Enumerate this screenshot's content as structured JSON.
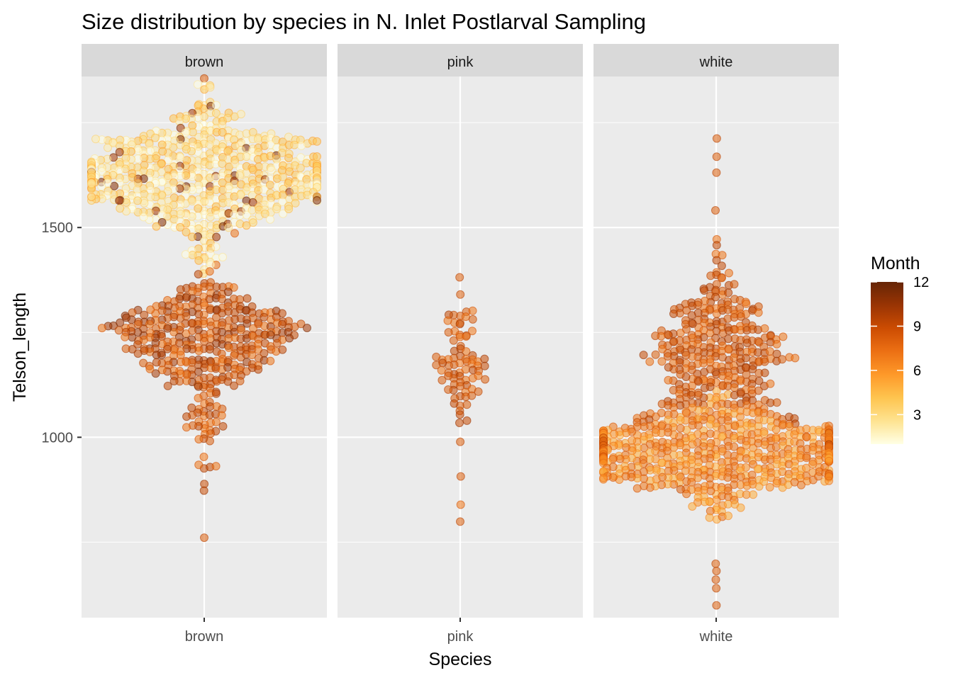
{
  "chart_data": {
    "type": "scatter",
    "subtype": "beeswarm",
    "title": "Size distribution by species in N. Inlet Postlarval Sampling",
    "xlabel": "Species",
    "ylabel": "Telson_length",
    "ylim": [
      570,
      1860
    ],
    "y_ticks": [
      1000,
      1500
    ],
    "y_minor_gridlines": [
      750,
      1250,
      1750
    ],
    "grid": true,
    "legend": {
      "title": "Month",
      "type": "continuous",
      "range": [
        1,
        12
      ],
      "breaks": [
        3,
        6,
        9,
        12
      ],
      "position": "right",
      "colors": [
        "#ffffe5",
        "#fee391",
        "#fec44f",
        "#fe9929",
        "#ec7014",
        "#cc4c02",
        "#993404",
        "#662506"
      ]
    },
    "facets": [
      {
        "label": "brown",
        "x_label": "brown",
        "clusters": [
          {
            "center": 1625,
            "sd": 80,
            "n": 620,
            "months": [
              1,
              2,
              3,
              4
            ],
            "outlier_months": [
              10,
              11
            ],
            "outlier_share": 0.06
          },
          {
            "center": 1245,
            "sd": 65,
            "n": 330,
            "months": [
              7,
              8,
              9,
              10
            ]
          },
          {
            "center": 1060,
            "sd": 95,
            "n": 55,
            "months": [
              7,
              8,
              9
            ]
          }
        ],
        "extremes": [
          760,
          1855
        ],
        "range_summary": [
          760,
          1855
        ]
      },
      {
        "label": "pink",
        "x_label": "pink",
        "clusters": [
          {
            "center": 1170,
            "sd": 85,
            "n": 80,
            "months": [
              7,
              8,
              9
            ]
          }
        ],
        "extremes": [
          800,
          905,
          1380
        ],
        "range_summary": [
          800,
          1380
        ]
      },
      {
        "label": "white",
        "x_label": "white",
        "clusters": [
          {
            "center": 960,
            "sd": 55,
            "n": 560,
            "months": [
              5,
              6,
              7
            ]
          },
          {
            "center": 1200,
            "sd": 100,
            "n": 330,
            "months": [
              7,
              8,
              9
            ]
          }
        ],
        "extremes": [
          600,
          640,
          660,
          680,
          700,
          1540,
          1630,
          1670,
          1710
        ],
        "range_summary": [
          600,
          1710
        ]
      }
    ]
  }
}
